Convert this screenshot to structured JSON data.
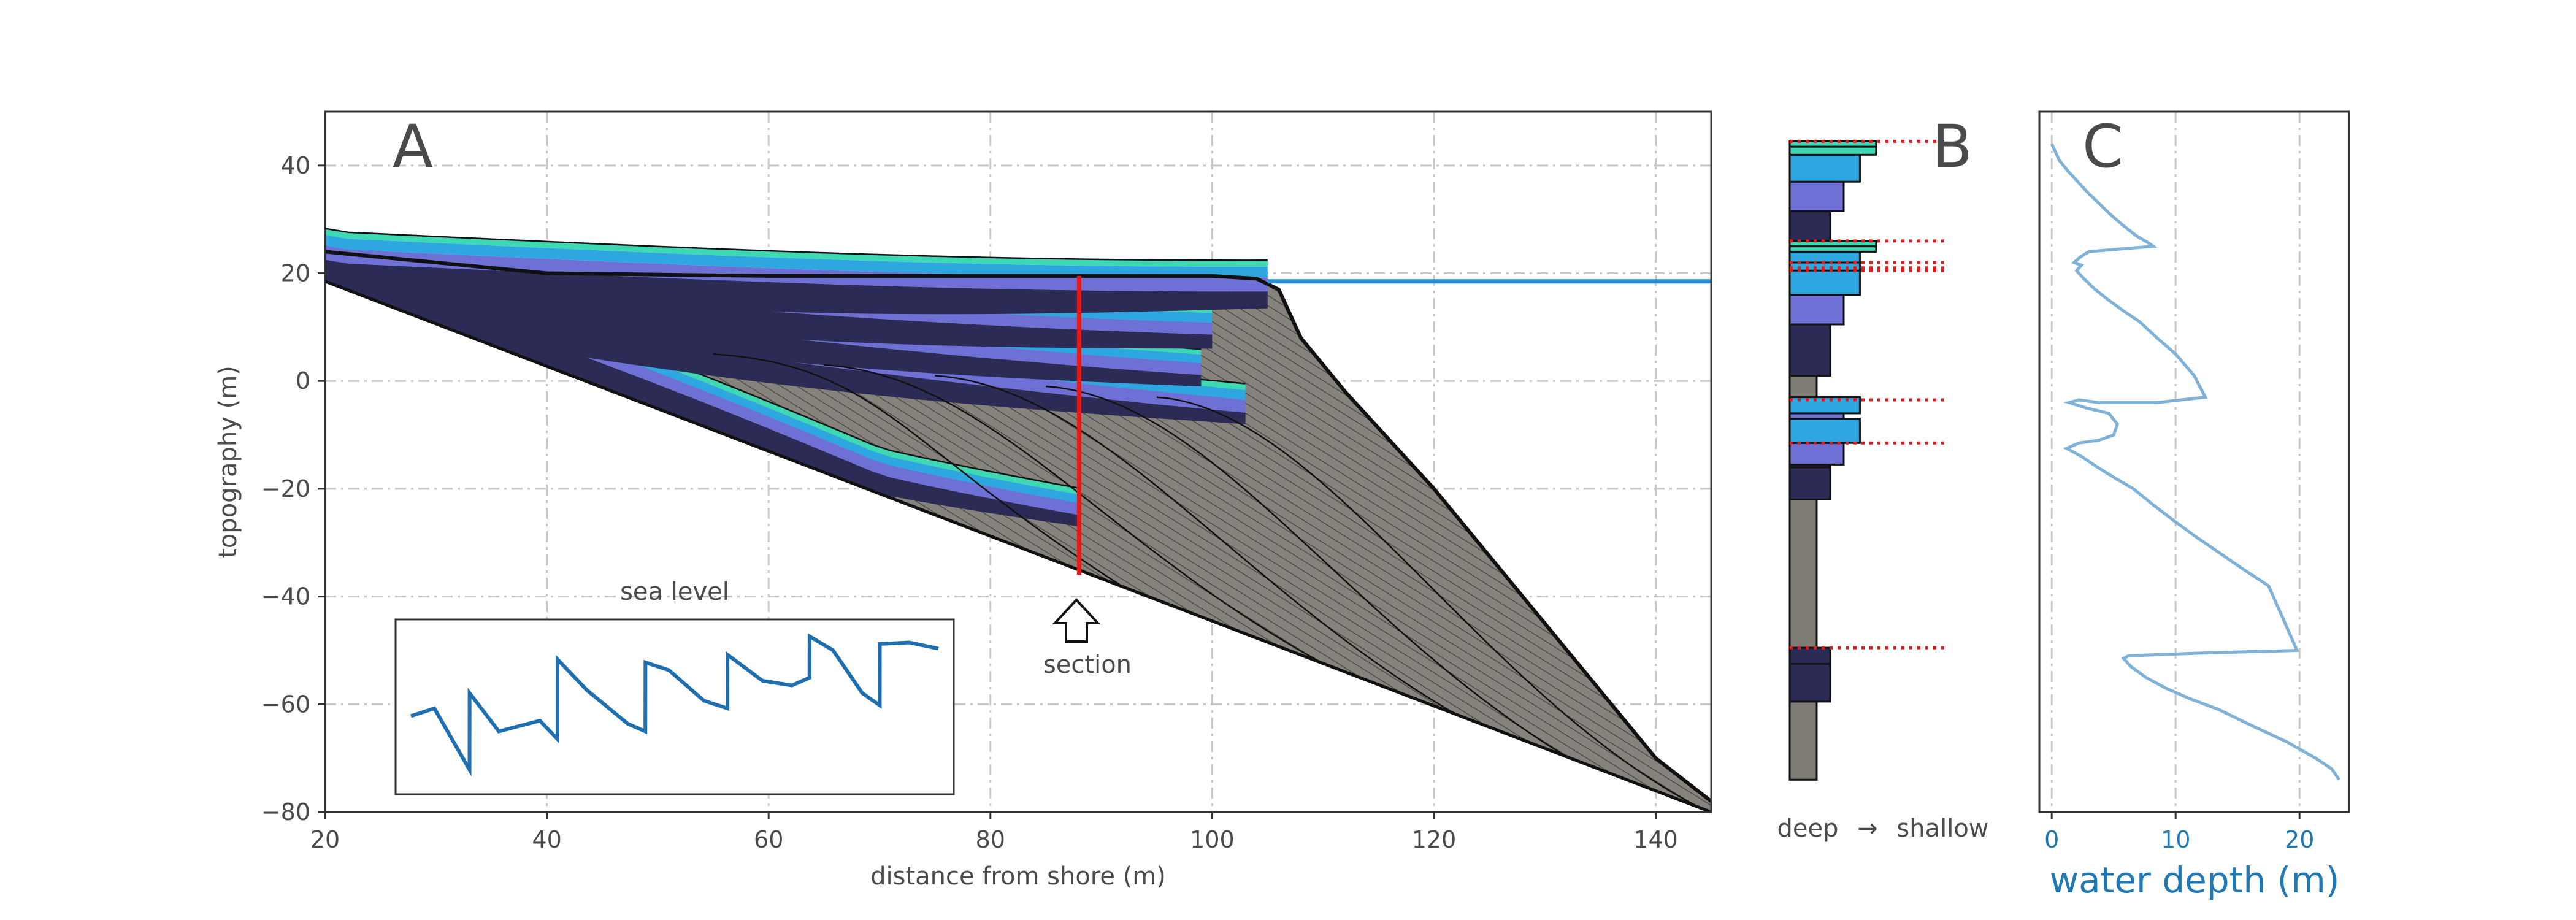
{
  "colors": {
    "deep": "#2c2b55",
    "mid": "#6f70d6",
    "shallow": "#2ea6e0",
    "shallowest": "#3ed9b4",
    "gray": "#7f7c76",
    "sea_line": "#1f6fb0",
    "horizon_line": "#2a8fd8",
    "section_line": "#e01b1b",
    "depth_curve": "#7fb2d8",
    "depth_axis": "#1f77b4"
  },
  "chart_data": [
    {
      "panel": "A",
      "type": "area",
      "panel_label": "A",
      "xlabel": "distance from shore (m)",
      "ylabel": "topography (m)",
      "xlim": [
        20,
        145
      ],
      "ylim": [
        -80,
        50
      ],
      "xticks": [
        20,
        40,
        60,
        80,
        100,
        120,
        140
      ],
      "yticks": [
        -80,
        -60,
        -40,
        -20,
        0,
        20,
        40
      ],
      "grid": true,
      "basement": [
        [
          20,
          18.5
        ],
        [
          145,
          -80
        ]
      ],
      "final_surface": [
        [
          20,
          24
        ],
        [
          40,
          20
        ],
        [
          60,
          19.5
        ],
        [
          80,
          19.5
        ],
        [
          100,
          19.5
        ],
        [
          104,
          19
        ],
        [
          106,
          17
        ],
        [
          108,
          8
        ],
        [
          112,
          -2
        ],
        [
          120,
          -20
        ],
        [
          130,
          -45
        ],
        [
          140,
          -70
        ],
        [
          145,
          -78
        ]
      ],
      "sea_level_now": {
        "x_start": 105,
        "x_end": 145,
        "y": 18.5
      },
      "section": {
        "x": 88,
        "y_bottom": -36,
        "y_top": 19.5,
        "label": "section"
      },
      "inset": {
        "title": "sea level",
        "series": [
          {
            "t": 0,
            "y": 0.45
          },
          {
            "t": 0.4,
            "y": 0.5
          },
          {
            "t": 1,
            "y": 0.1
          },
          {
            "t": 1.001,
            "y": 0.6
          },
          {
            "t": 1.5,
            "y": 0.35
          },
          {
            "t": 2.2,
            "y": 0.42
          },
          {
            "t": 2.5,
            "y": 0.3
          },
          {
            "t": 2.501,
            "y": 0.82
          },
          {
            "t": 3.0,
            "y": 0.62
          },
          {
            "t": 3.7,
            "y": 0.4
          },
          {
            "t": 4.0,
            "y": 0.35
          },
          {
            "t": 4.001,
            "y": 0.8
          },
          {
            "t": 4.4,
            "y": 0.75
          },
          {
            "t": 5.0,
            "y": 0.55
          },
          {
            "t": 5.4,
            "y": 0.5
          },
          {
            "t": 5.401,
            "y": 0.85
          },
          {
            "t": 6.0,
            "y": 0.68
          },
          {
            "t": 6.5,
            "y": 0.65
          },
          {
            "t": 6.8,
            "y": 0.7
          },
          {
            "t": 6.801,
            "y": 0.97
          },
          {
            "t": 7.2,
            "y": 0.88
          },
          {
            "t": 7.7,
            "y": 0.6
          },
          {
            "t": 8.0,
            "y": 0.52
          },
          {
            "t": 8.001,
            "y": 0.92
          },
          {
            "t": 8.5,
            "y": 0.93
          },
          {
            "t": 9.0,
            "y": 0.89
          }
        ]
      }
    },
    {
      "panel": "B",
      "type": "bar",
      "panel_label": "B",
      "xlabel_left": "deep",
      "xlabel_arrow": "→",
      "xlabel_right": "shallow",
      "ylim": [
        -80,
        50
      ],
      "facies_widths": {
        "gray": 1,
        "deep": 1.5,
        "mid": 2,
        "shallow": 2.6,
        "shallowest": 3.2
      },
      "segments": [
        {
          "top": -59.5,
          "bottom": -74,
          "facies": "gray"
        },
        {
          "top": -52.5,
          "bottom": -59.5,
          "facies": "deep"
        },
        {
          "top": -49.5,
          "bottom": -52.5,
          "facies": "deep"
        },
        {
          "top": -22,
          "bottom": -49.5,
          "facies": "gray"
        },
        {
          "top": -16,
          "bottom": -22,
          "facies": "deep"
        },
        {
          "top": -15.5,
          "bottom": -16,
          "facies": "deep"
        },
        {
          "top": -11.5,
          "bottom": -15.5,
          "facies": "mid"
        },
        {
          "top": -7,
          "bottom": -11.5,
          "facies": "shallow"
        },
        {
          "top": -6,
          "bottom": -7,
          "facies": "mid"
        },
        {
          "top": -3,
          "bottom": -6,
          "facies": "shallow"
        },
        {
          "top": 1,
          "bottom": -3,
          "facies": "gray"
        },
        {
          "top": 10.5,
          "bottom": 1,
          "facies": "deep"
        },
        {
          "top": 16,
          "bottom": 10.5,
          "facies": "mid"
        },
        {
          "top": 20.5,
          "bottom": 16,
          "facies": "shallow"
        },
        {
          "top": 22,
          "bottom": 20.5,
          "facies": "shallow"
        },
        {
          "top": 24,
          "bottom": 22,
          "facies": "shallow"
        },
        {
          "top": 25,
          "bottom": 24,
          "facies": "shallowest"
        },
        {
          "top": 26,
          "bottom": 25,
          "facies": "shallowest"
        },
        {
          "top": 31.5,
          "bottom": 26,
          "facies": "deep"
        },
        {
          "top": 37,
          "bottom": 31.5,
          "facies": "mid"
        },
        {
          "top": 42,
          "bottom": 37,
          "facies": "shallow"
        },
        {
          "top": 43.5,
          "bottom": 42,
          "facies": "shallowest"
        },
        {
          "top": 44.5,
          "bottom": 43.5,
          "facies": "shallowest"
        }
      ],
      "sequence_boundaries": [
        44.5,
        26,
        22,
        21,
        20.5,
        -3.5,
        -11.5,
        -49.5
      ]
    },
    {
      "panel": "C",
      "type": "line",
      "panel_label": "C",
      "xlabel": "water depth (m)",
      "xlim": [
        -1,
        24
      ],
      "xticks": [
        0,
        10,
        20
      ],
      "ylim": [
        -80,
        50
      ],
      "grid": true,
      "series": [
        {
          "x": [
            0,
            0.6,
            1.3,
            2.1,
            2.9,
            3.8,
            4.7,
            5.7,
            6.8,
            7.9,
            8.2,
            5.5,
            3.0,
            2.3,
            1.8,
            2.4,
            2.0,
            2.6,
            3.5,
            4.6,
            5.8,
            7.1,
            8.5,
            10.0,
            11.5,
            12.4,
            8.5,
            3.8,
            2.2,
            1.4,
            2.8,
            4.6,
            5.3,
            5.0,
            3.8,
            2.2,
            1.2,
            2.4,
            3.7,
            5.1,
            6.6,
            8.2,
            9.9,
            11.7,
            13.6,
            15.5,
            17.5,
            19.8,
            12.0,
            6.2,
            5.8,
            6.4,
            7.6,
            9.2,
            11.2,
            13.5,
            16.2,
            19.0,
            21.3,
            22.6,
            23.2
          ],
          "y": [
            44,
            41,
            39,
            37,
            35,
            33,
            31,
            29,
            27,
            25.5,
            25,
            24.5,
            24,
            23,
            22,
            21.5,
            20.5,
            19,
            17,
            15,
            13,
            11,
            8,
            5,
            1,
            -3,
            -4,
            -4,
            -3.5,
            -4,
            -5,
            -6,
            -8,
            -10,
            -11,
            -11.5,
            -12.5,
            -14,
            -16,
            -18,
            -20,
            -23,
            -26,
            -29,
            -32,
            -35,
            -38,
            -50,
            -50.5,
            -51,
            -51.5,
            -53,
            -55,
            -57,
            -59,
            -61,
            -64,
            -67,
            -70,
            -72,
            -74
          ]
        }
      ]
    }
  ]
}
